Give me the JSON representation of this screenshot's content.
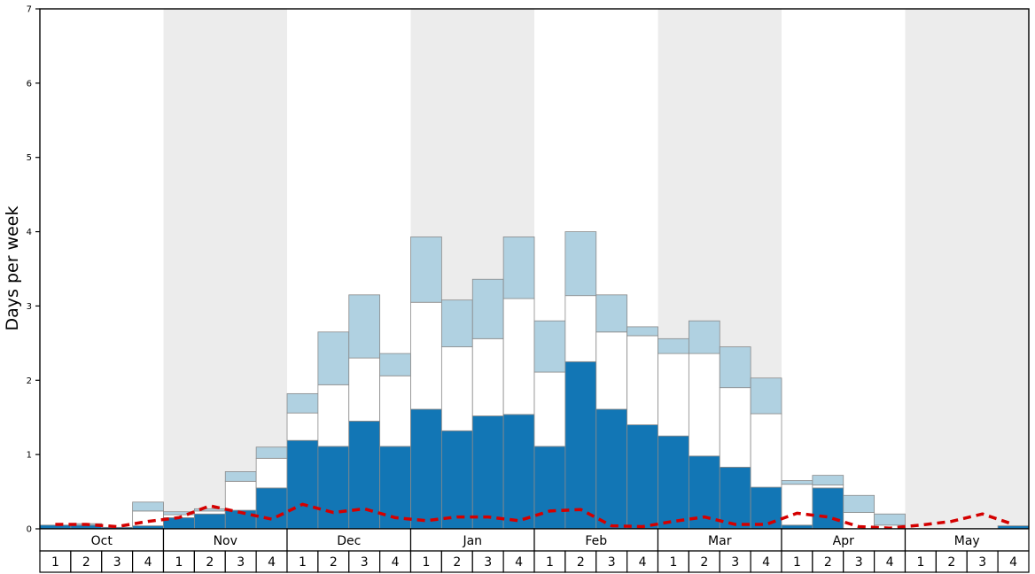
{
  "chart_data": {
    "type": "bar",
    "title": "",
    "ylabel": "Days per week",
    "ylim": [
      0,
      7
    ],
    "yticks": [
      0,
      1,
      2,
      3,
      4,
      5,
      6,
      7
    ],
    "months": [
      "Oct",
      "Nov",
      "Dec",
      "Jan",
      "Feb",
      "Mar",
      "Apr",
      "May"
    ],
    "week_labels": [
      "1",
      "2",
      "3",
      "4"
    ],
    "legend": "none",
    "grid": "off",
    "band_color": "#ececec",
    "shaded_month_indices": [
      1,
      3,
      5,
      7
    ],
    "series": [
      {
        "name": "dark-blue-days",
        "color": "#1276b5",
        "values": [
          0.05,
          0.05,
          0.02,
          0.04,
          0.15,
          0.2,
          0.25,
          0.55,
          1.19,
          1.11,
          1.45,
          1.11,
          1.61,
          1.32,
          1.52,
          1.54,
          1.11,
          2.25,
          1.61,
          1.4,
          1.25,
          0.98,
          0.83,
          0.56,
          0.05,
          0.55,
          0.0,
          0.0,
          0.0,
          0.0,
          0.0,
          0.04
        ]
      },
      {
        "name": "white-days",
        "color": "#ffffff",
        "values": [
          0.0,
          0.0,
          0.0,
          0.2,
          0.04,
          0.04,
          0.39,
          0.4,
          0.37,
          0.83,
          0.85,
          0.95,
          1.44,
          1.13,
          1.04,
          1.56,
          1.0,
          0.89,
          1.04,
          1.2,
          1.11,
          1.38,
          1.07,
          0.99,
          0.55,
          0.04,
          0.22,
          0.05,
          0.0,
          0.0,
          0.0,
          0.0
        ]
      },
      {
        "name": "light-blue-days",
        "color": "#b0d1e1",
        "values": [
          0.0,
          0.02,
          0.0,
          0.12,
          0.04,
          0.03,
          0.13,
          0.15,
          0.26,
          0.71,
          0.85,
          0.3,
          0.88,
          0.63,
          0.8,
          0.83,
          0.69,
          0.86,
          0.5,
          0.12,
          0.2,
          0.44,
          0.55,
          0.48,
          0.05,
          0.13,
          0.23,
          0.15,
          0.0,
          0.0,
          0.0,
          0.0
        ]
      }
    ],
    "line_series": {
      "name": "red-dashed-line",
      "color": "#d40000",
      "values": [
        0.06,
        0.06,
        0.03,
        0.1,
        0.15,
        0.31,
        0.22,
        0.13,
        0.33,
        0.22,
        0.27,
        0.15,
        0.11,
        0.16,
        0.16,
        0.11,
        0.24,
        0.26,
        0.04,
        0.03,
        0.1,
        0.16,
        0.06,
        0.06,
        0.21,
        0.16,
        0.03,
        0.01,
        0.05,
        0.1,
        0.2,
        0.06
      ]
    }
  }
}
